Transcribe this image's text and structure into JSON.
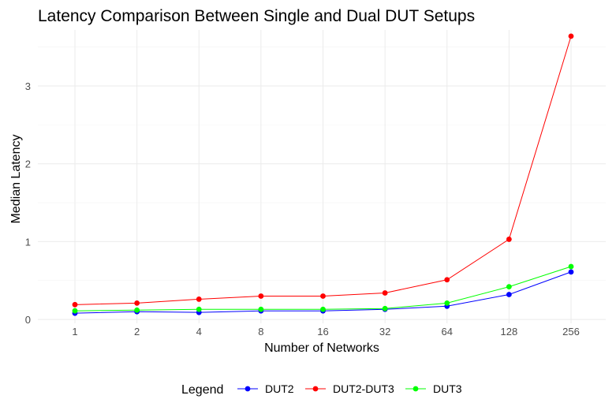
{
  "chart_data": {
    "type": "line",
    "title": "Latency Comparison Between Single and Dual DUT Setups",
    "xlabel": "Number of Networks",
    "ylabel": "Median Latency",
    "categories": [
      "1",
      "2",
      "4",
      "8",
      "16",
      "32",
      "64",
      "128",
      "256"
    ],
    "ylim": [
      -0.05,
      3.72
    ],
    "yticks": [
      0,
      1,
      2,
      3
    ],
    "grid": true,
    "legend": {
      "title": "Legend",
      "position": "bottom"
    },
    "series": [
      {
        "name": "DUT2",
        "color": "#0000ff",
        "values": [
          0.08,
          0.1,
          0.09,
          0.11,
          0.11,
          0.13,
          0.17,
          0.32,
          0.61
        ]
      },
      {
        "name": "DUT2-DUT3",
        "color": "#ff0000",
        "values": [
          0.19,
          0.21,
          0.26,
          0.3,
          0.3,
          0.34,
          0.51,
          1.03,
          3.64
        ]
      },
      {
        "name": "DUT3",
        "color": "#00ff00",
        "values": [
          0.11,
          0.12,
          0.13,
          0.13,
          0.13,
          0.14,
          0.21,
          0.42,
          0.68
        ]
      }
    ]
  }
}
